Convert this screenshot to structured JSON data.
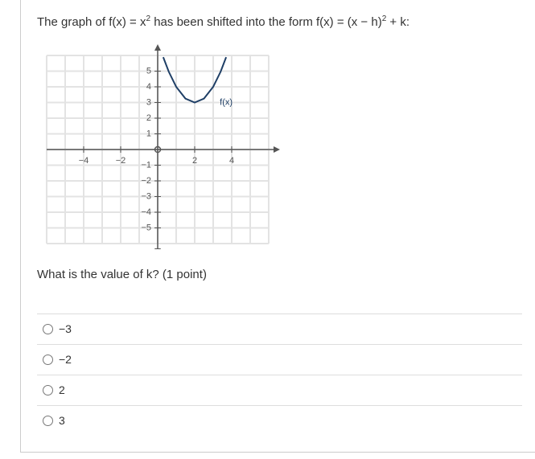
{
  "prompt": [
    "The graph of f(x) = x",
    "2",
    " has been shifted into the form f(x) = (x − h)",
    "2",
    " + k:"
  ],
  "graph": {
    "xlim": [
      -6,
      6
    ],
    "ylim": [
      -6,
      6
    ],
    "xticks": [
      {
        "value": -4,
        "label": "−4"
      },
      {
        "value": -2,
        "label": "−2"
      },
      2,
      4
    ],
    "yticks": [
      {
        "value": -5,
        "label": "−5"
      },
      {
        "value": -4,
        "label": "−4"
      },
      {
        "value": -3,
        "label": "−3"
      },
      {
        "value": -2,
        "label": "−2"
      },
      {
        "value": -1,
        "label": "−1"
      },
      1,
      2,
      3,
      4,
      5
    ],
    "curve": {
      "label": "f(x)",
      "color": "#1f3f66",
      "x": [
        0.3,
        0.6,
        1,
        1.5,
        2,
        2.5,
        3,
        3.4,
        3.7
      ],
      "y": [
        5.89,
        4.96,
        4,
        3.25,
        3,
        3.25,
        4,
        4.96,
        5.89
      ]
    }
  },
  "question": "What is the value of k? (1 point)",
  "options": [
    "−3",
    "−2",
    "2",
    "3"
  ]
}
